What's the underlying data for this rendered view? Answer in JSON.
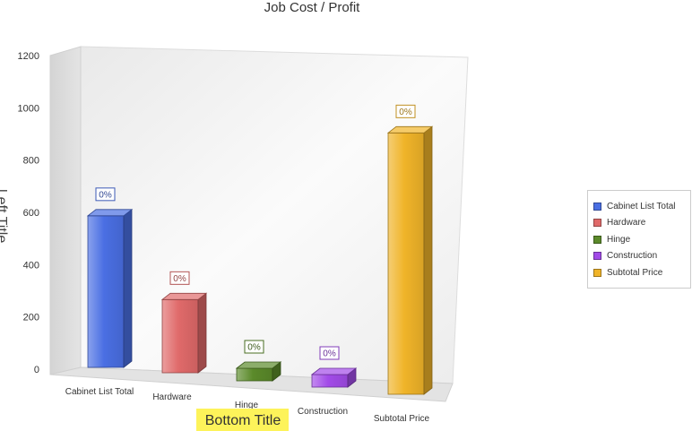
{
  "chart_data": {
    "type": "bar",
    "title": "Job Cost / Profit",
    "xlabel": "Bottom Title",
    "ylabel": "Left Title",
    "categories": [
      "Cabinet List Total",
      "Hardware",
      "Hinge",
      "Construction",
      "Subtotal Price"
    ],
    "values": [
      580,
      280,
      40,
      40,
      1000
    ],
    "data_labels": [
      "0%",
      "0%",
      "0%",
      "0%",
      "0%"
    ],
    "ylim": [
      0,
      1200
    ],
    "yticks": [
      "0",
      "200",
      "400",
      "600",
      "800",
      "1000",
      "1200"
    ],
    "grid": false,
    "legend_position": "right",
    "series": [
      {
        "name": "Cabinet List Total",
        "color": "#4a6fe3"
      },
      {
        "name": "Hardware",
        "color": "#e06a6a"
      },
      {
        "name": "Hinge",
        "color": "#5b8a2a"
      },
      {
        "name": "Construction",
        "color": "#a24be8"
      },
      {
        "name": "Subtotal Price",
        "color": "#f0b429"
      }
    ]
  }
}
